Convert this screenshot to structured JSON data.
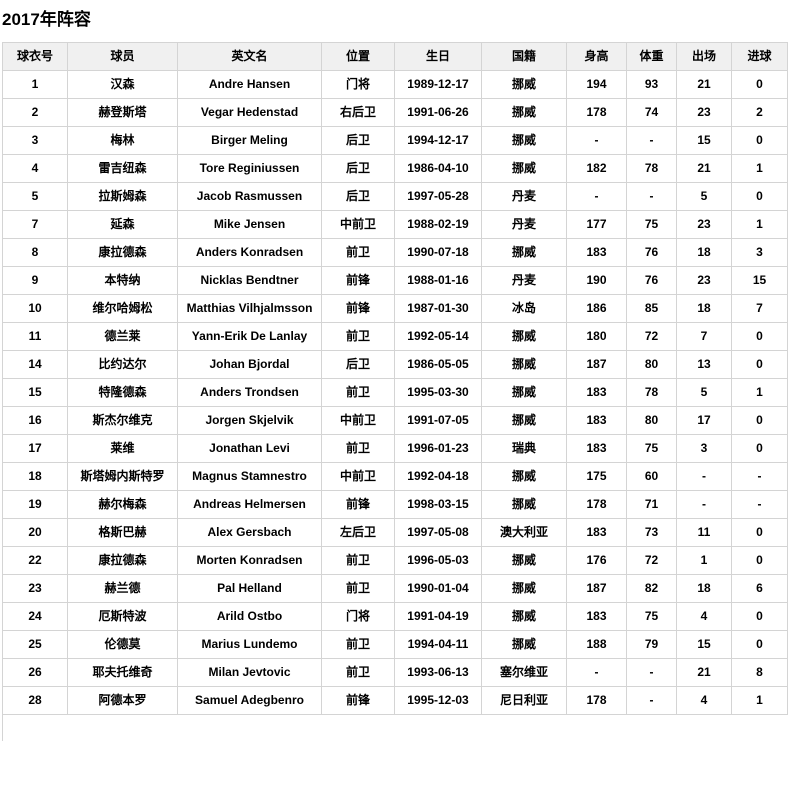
{
  "page": {
    "title": "2017年阵容"
  },
  "table": {
    "headers": [
      "球衣号",
      "球员",
      "英文名",
      "位置",
      "生日",
      "国籍",
      "身高",
      "体重",
      "出场",
      "进球"
    ],
    "rows": [
      [
        "1",
        "汉森",
        "Andre Hansen",
        "门将",
        "1989-12-17",
        "挪威",
        "194",
        "93",
        "21",
        "0"
      ],
      [
        "2",
        "赫登斯塔",
        "Vegar Hedenstad",
        "右后卫",
        "1991-06-26",
        "挪威",
        "178",
        "74",
        "23",
        "2"
      ],
      [
        "3",
        "梅林",
        "Birger Meling",
        "后卫",
        "1994-12-17",
        "挪威",
        "-",
        "-",
        "15",
        "0"
      ],
      [
        "4",
        "雷吉纽森",
        "Tore Reginiussen",
        "后卫",
        "1986-04-10",
        "挪威",
        "182",
        "78",
        "21",
        "1"
      ],
      [
        "5",
        "拉斯姆森",
        "Jacob Rasmussen",
        "后卫",
        "1997-05-28",
        "丹麦",
        "-",
        "-",
        "5",
        "0"
      ],
      [
        "7",
        "延森",
        "Mike Jensen",
        "中前卫",
        "1988-02-19",
        "丹麦",
        "177",
        "75",
        "23",
        "1"
      ],
      [
        "8",
        "康拉德森",
        "Anders Konradsen",
        "前卫",
        "1990-07-18",
        "挪威",
        "183",
        "76",
        "18",
        "3"
      ],
      [
        "9",
        "本特纳",
        "Nicklas Bendtner",
        "前锋",
        "1988-01-16",
        "丹麦",
        "190",
        "76",
        "23",
        "15"
      ],
      [
        "10",
        "维尔哈姆松",
        "Matthias Vilhjalmsson",
        "前锋",
        "1987-01-30",
        "冰岛",
        "186",
        "85",
        "18",
        "7"
      ],
      [
        "11",
        "德兰莱",
        "Yann-Erik De Lanlay",
        "前卫",
        "1992-05-14",
        "挪威",
        "180",
        "72",
        "7",
        "0"
      ],
      [
        "14",
        "比约达尔",
        "Johan Bjordal",
        "后卫",
        "1986-05-05",
        "挪威",
        "187",
        "80",
        "13",
        "0"
      ],
      [
        "15",
        "特隆德森",
        "Anders Trondsen",
        "前卫",
        "1995-03-30",
        "挪威",
        "183",
        "78",
        "5",
        "1"
      ],
      [
        "16",
        "斯杰尔维克",
        "Jorgen Skjelvik",
        "中前卫",
        "1991-07-05",
        "挪威",
        "183",
        "80",
        "17",
        "0"
      ],
      [
        "17",
        "莱维",
        "Jonathan Levi",
        "前卫",
        "1996-01-23",
        "瑞典",
        "183",
        "75",
        "3",
        "0"
      ],
      [
        "18",
        "斯塔姆内斯特罗",
        "Magnus Stamnestro",
        "中前卫",
        "1992-04-18",
        "挪威",
        "175",
        "60",
        "-",
        "-"
      ],
      [
        "19",
        "赫尔梅森",
        "Andreas Helmersen",
        "前锋",
        "1998-03-15",
        "挪威",
        "178",
        "71",
        "-",
        "-"
      ],
      [
        "20",
        "格斯巴赫",
        "Alex Gersbach",
        "左后卫",
        "1997-05-08",
        "澳大利亚",
        "183",
        "73",
        "11",
        "0"
      ],
      [
        "22",
        "康拉德森",
        "Morten Konradsen",
        "前卫",
        "1996-05-03",
        "挪威",
        "176",
        "72",
        "1",
        "0"
      ],
      [
        "23",
        "赫兰德",
        "Pal Helland",
        "前卫",
        "1990-01-04",
        "挪威",
        "187",
        "82",
        "18",
        "6"
      ],
      [
        "24",
        "厄斯特波",
        "Arild Ostbo",
        "门将",
        "1991-04-19",
        "挪威",
        "183",
        "75",
        "4",
        "0"
      ],
      [
        "25",
        "伦德莫",
        "Marius Lundemo",
        "前卫",
        "1994-04-11",
        "挪威",
        "188",
        "79",
        "15",
        "0"
      ],
      [
        "26",
        "耶夫托维奇",
        "Milan Jevtovic",
        "前卫",
        "1993-06-13",
        "塞尔维亚",
        "-",
        "-",
        "21",
        "8"
      ],
      [
        "28",
        "阿德本罗",
        "Samuel Adegbenro",
        "前锋",
        "1995-12-03",
        "尼日利亚",
        "178",
        "-",
        "4",
        "1"
      ]
    ]
  }
}
